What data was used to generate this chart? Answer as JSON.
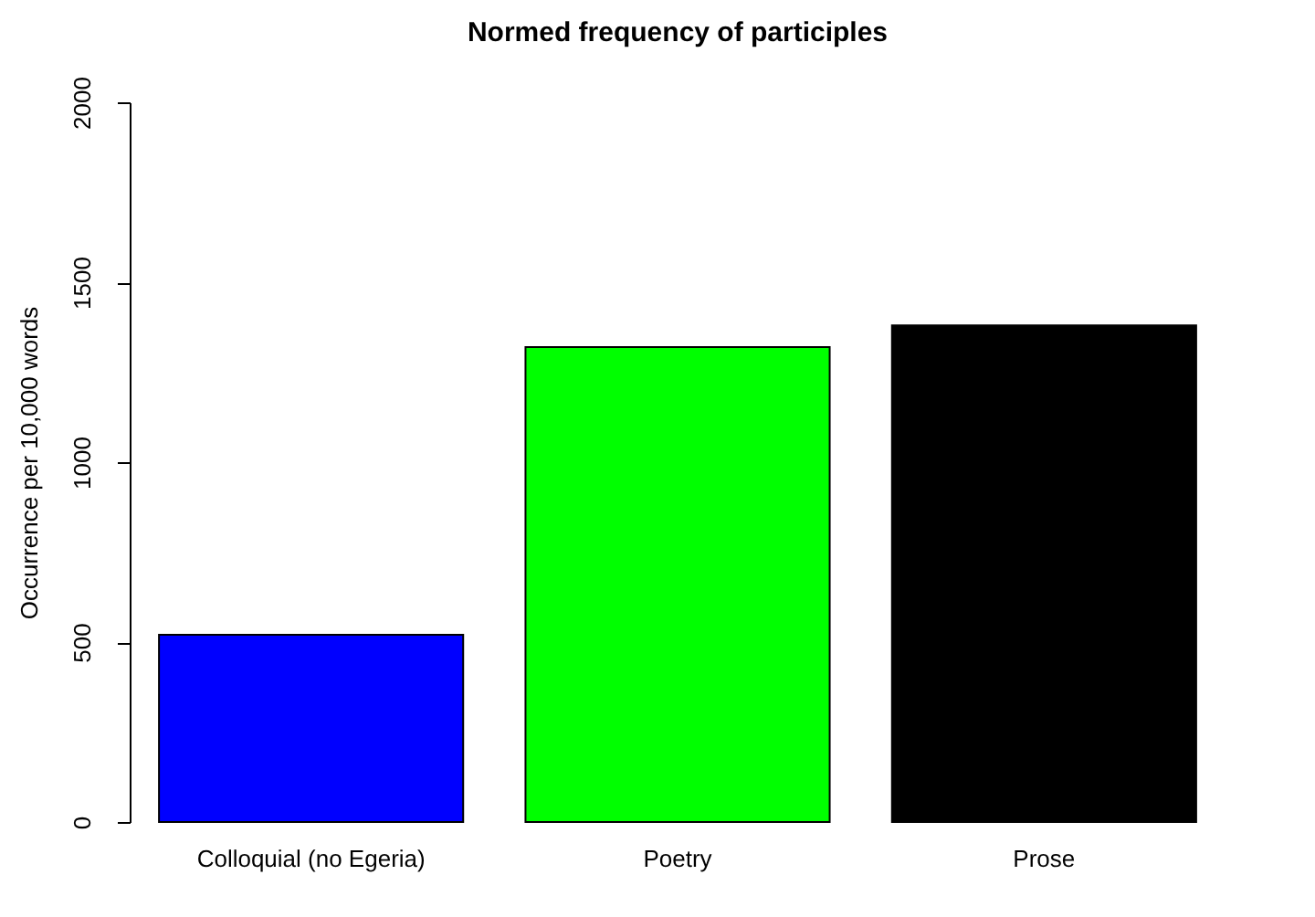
{
  "chart_data": {
    "type": "bar",
    "title": "Normed frequency of participles",
    "ylabel": "Occurrence per 10,000 words",
    "categories": [
      "Colloquial (no Egeria)",
      "Poetry",
      "Prose"
    ],
    "values": [
      520,
      1320,
      1380
    ],
    "colors": [
      "#0000ff",
      "#00ff00",
      "#000000"
    ],
    "ylim": [
      0,
      2000
    ],
    "yticks": [
      0,
      500,
      1000,
      1500,
      2000
    ],
    "grid": false
  }
}
